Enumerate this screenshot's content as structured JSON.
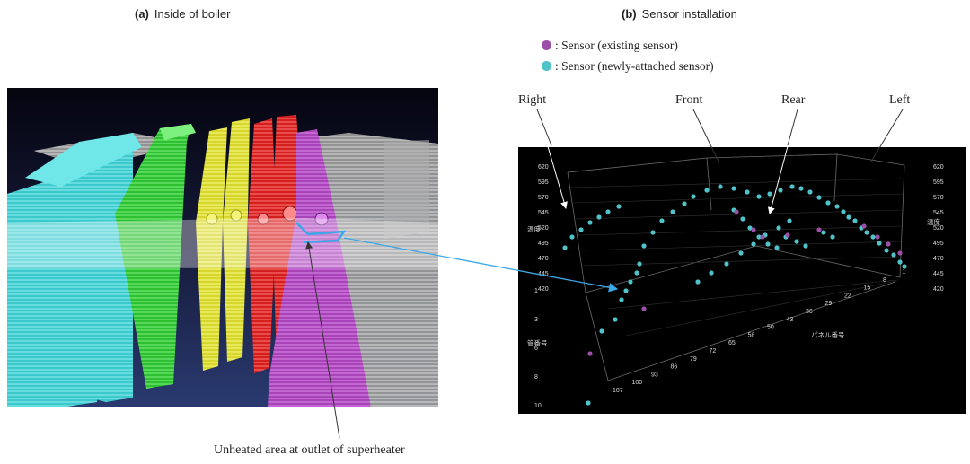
{
  "panel_a": {
    "letter": "(a)",
    "title": "Inside of boiler"
  },
  "panel_b": {
    "letter": "(b)",
    "title": "Sensor installation"
  },
  "legend": [
    {
      "text": ": Sensor (existing sensor)",
      "color": "#9b4fa6"
    },
    {
      "text": ": Sensor (newly-attached sensor)",
      "color": "#4fc3c9"
    }
  ],
  "callouts": {
    "right": "Right",
    "front": "Front",
    "rear": "Rear",
    "left": "Left"
  },
  "bottom_caption": "Unheated area at outlet of superheater",
  "plot_axes": {
    "temp_ticks": [
      "620",
      "595",
      "570",
      "545",
      "520",
      "495",
      "470",
      "445",
      "420"
    ],
    "temp_label": "温度",
    "pipe_ticks": [
      "1",
      "3",
      "6",
      "8",
      "10"
    ],
    "pipe_label": "管番号",
    "panel_ticks": [
      "107",
      "100",
      "93",
      "86",
      "79",
      "72",
      "65",
      "58",
      "50",
      "43",
      "36",
      "29",
      "22",
      "15",
      "8",
      "1"
    ],
    "panel_label": "パネル番号"
  },
  "colors": {
    "cyan_panel": "#44d9db",
    "green_panel": "#37d23a",
    "yellow_panel": "#e8e83a",
    "red_panel": "#e52828",
    "purple_panel": "#b64fc9",
    "gray_panel": "#c9c9c9",
    "background_dark": "#0c0c20",
    "plot_background": "#000000",
    "highlight": "#3aa8e8"
  }
}
